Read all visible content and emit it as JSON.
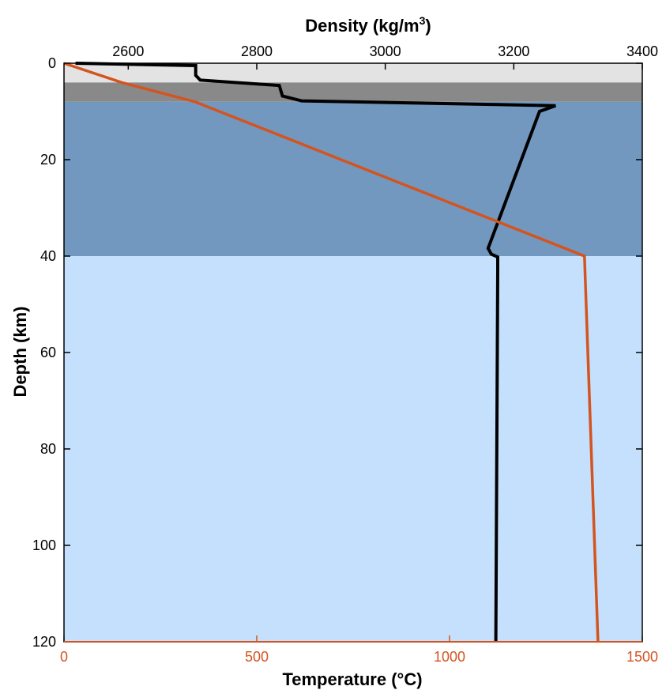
{
  "chart_data": {
    "type": "line",
    "title": "",
    "density_axis": {
      "label": "Density (kg/m",
      "label_sup": "3",
      "label_end": ")",
      "range": [
        2500,
        3400
      ],
      "ticks": [
        "2600",
        "2800",
        "3000",
        "3200",
        "3400"
      ],
      "tick_values": [
        2600,
        2800,
        3000,
        3200,
        3400
      ],
      "position": "top"
    },
    "temperature_axis": {
      "label": "Temperature (°C)",
      "range": [
        0,
        1500
      ],
      "ticks": [
        "0",
        "500",
        "1000",
        "1500"
      ],
      "tick_values": [
        0,
        500,
        1000,
        1500
      ],
      "position": "bottom",
      "color": "#d4541f"
    },
    "depth_axis": {
      "label": "Depth (km)",
      "range": [
        0,
        120
      ],
      "ticks": [
        "0",
        "20",
        "40",
        "60",
        "80",
        "100",
        "120"
      ],
      "tick_values": [
        0,
        20,
        40,
        60,
        80,
        100,
        120
      ],
      "inverted": true
    },
    "layers": [
      {
        "top": 0,
        "bottom": 4,
        "color": "#e3e3e3"
      },
      {
        "top": 4,
        "bottom": 8,
        "color": "#898989"
      },
      {
        "top": 8,
        "bottom": 40,
        "color": "#7298bf"
      },
      {
        "top": 40,
        "bottom": 120,
        "color": "#c4e0fc"
      }
    ],
    "series": [
      {
        "axis": "density",
        "color": "#000000",
        "points": [
          [
            2518,
            0
          ],
          [
            2705,
            0.5
          ],
          [
            2705,
            2.5
          ],
          [
            2712,
            3.5
          ],
          [
            2835,
            4.6
          ],
          [
            2840,
            6.8
          ],
          [
            2870,
            7.8
          ],
          [
            3265,
            8.8
          ],
          [
            3240,
            10
          ],
          [
            3160,
            38.4
          ],
          [
            3165,
            39.6
          ],
          [
            3175,
            40.2
          ],
          [
            3175,
            43
          ],
          [
            3172,
            120
          ]
        ]
      },
      {
        "axis": "temperature",
        "color": "#d4541f",
        "points": [
          [
            0,
            0
          ],
          [
            150,
            4
          ],
          [
            340,
            8
          ],
          [
            1350,
            40
          ],
          [
            1385,
            120
          ]
        ]
      }
    ]
  }
}
